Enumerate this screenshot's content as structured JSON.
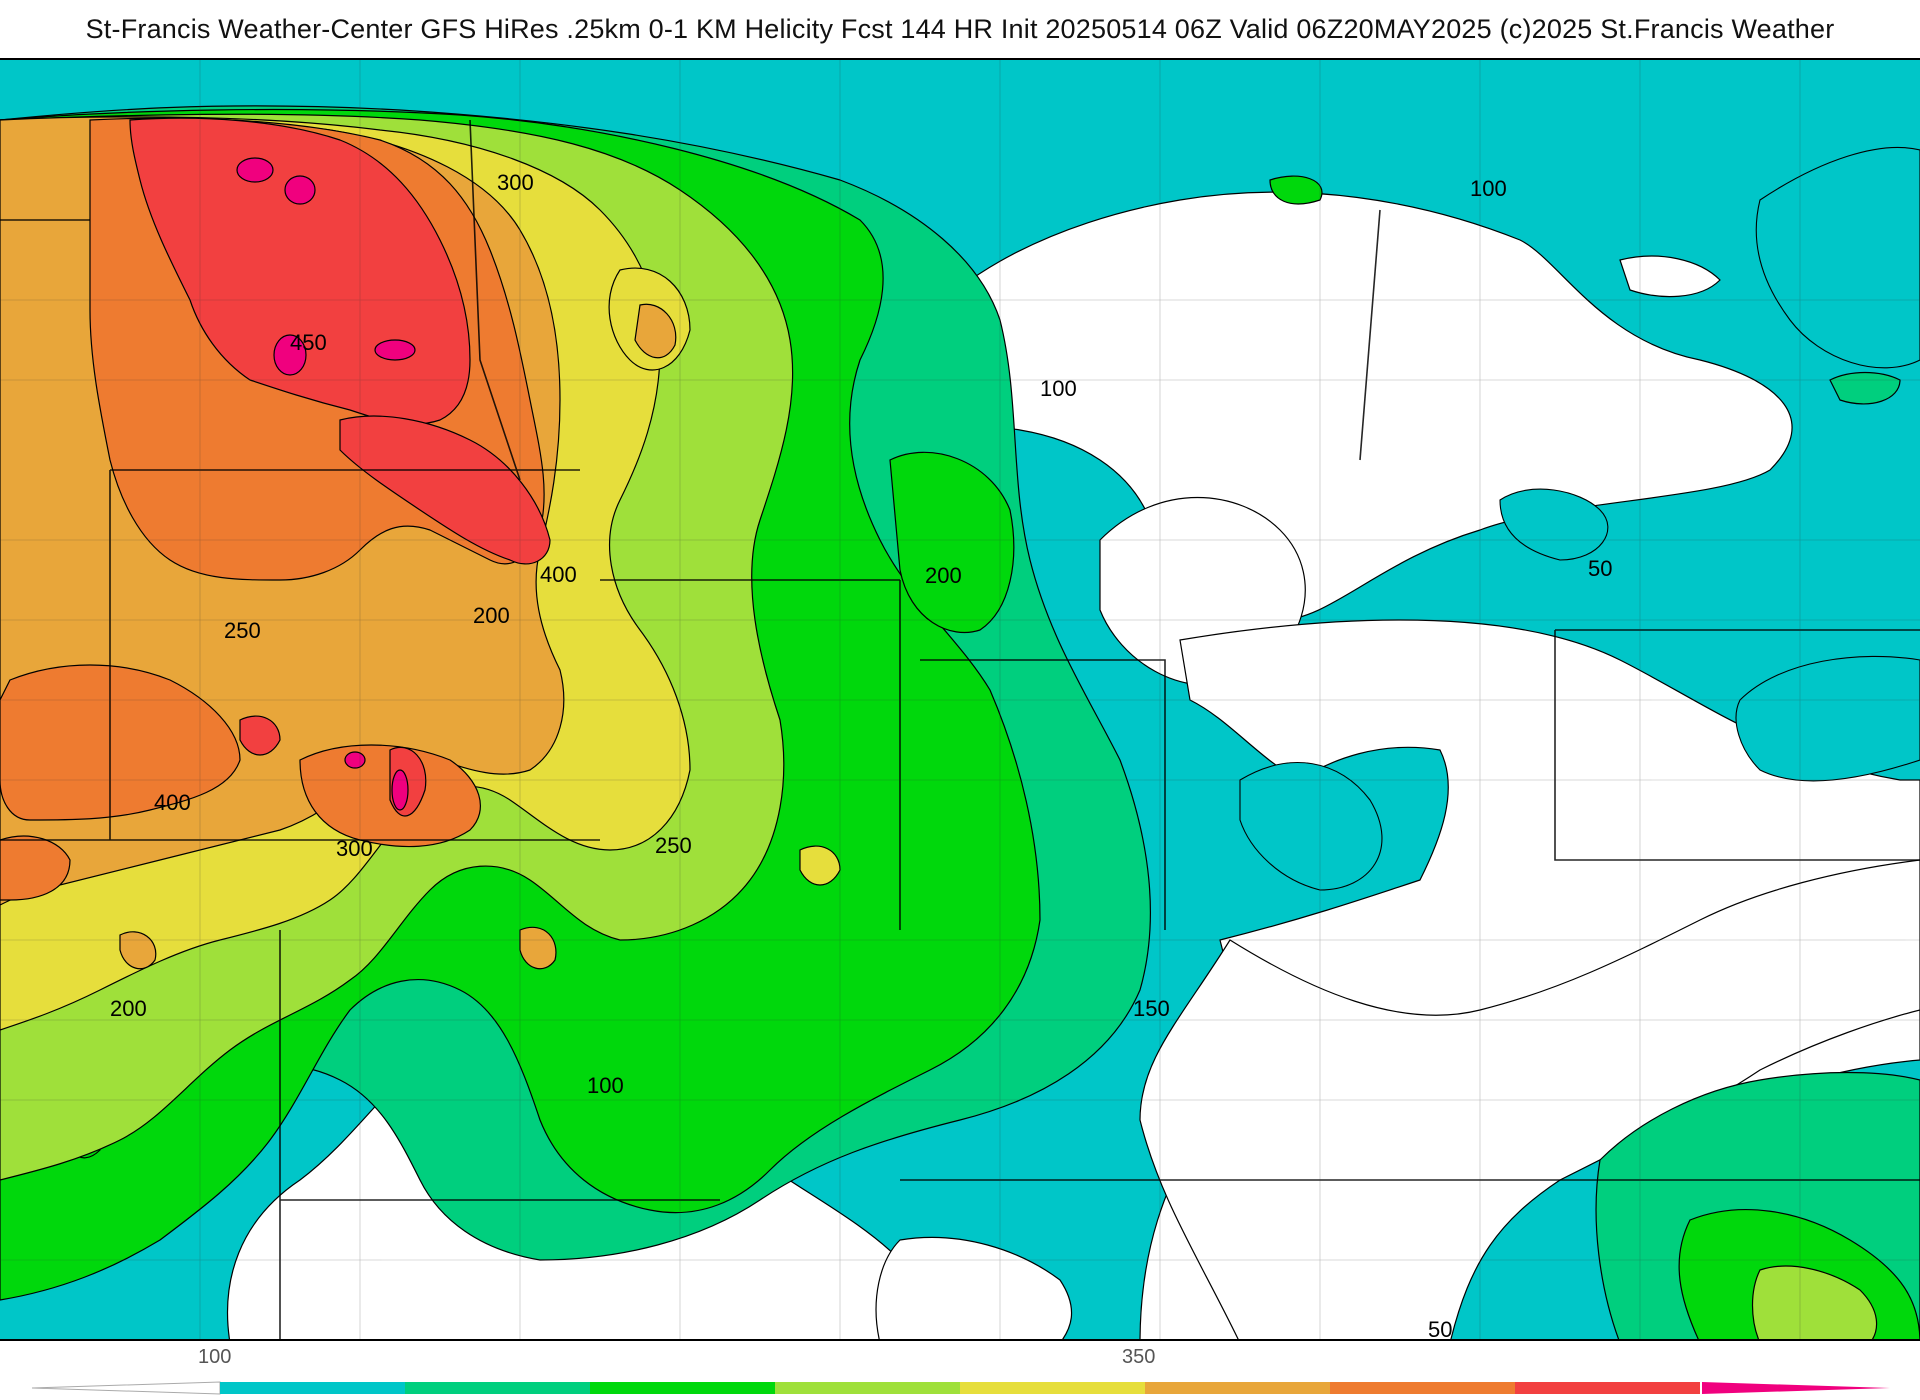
{
  "header": {
    "title": "St-Francis Weather-Center GFS HiRes .25km 0-1 KM Helicity Fcst 144 HR Init 20250514 06Z  Valid 06Z20MAY2025    (c)2025 St.Francis Weather"
  },
  "map": {
    "contour_labels": [
      {
        "text": "300"
      },
      {
        "text": "450"
      },
      {
        "text": "400"
      },
      {
        "text": "250"
      },
      {
        "text": "200"
      },
      {
        "text": "400"
      },
      {
        "text": "300"
      },
      {
        "text": "250"
      },
      {
        "text": "200"
      },
      {
        "text": "100"
      },
      {
        "text": "100"
      },
      {
        "text": "200"
      },
      {
        "text": "150"
      },
      {
        "text": "100"
      },
      {
        "text": "50"
      },
      {
        "text": "50"
      }
    ]
  },
  "legend": {
    "tick_labels": [
      "100",
      "350"
    ],
    "colors": [
      "#00c6c8",
      "#00cf7e",
      "#00d80c",
      "#9fe03a",
      "#e6de3c",
      "#e8a63a",
      "#ee7b30",
      "#f24040",
      "#f0007e"
    ]
  }
}
